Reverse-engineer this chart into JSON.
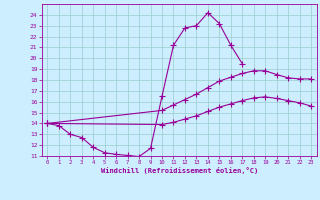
{
  "bg_color": "#cceeff",
  "line_color": "#990099",
  "grid_color": "#99cccc",
  "xlabel": "Windchill (Refroidissement éolien,°C)",
  "ylim": [
    11,
    25
  ],
  "xlim": [
    -0.5,
    23.5
  ],
  "yticks": [
    11,
    12,
    13,
    14,
    15,
    16,
    17,
    18,
    19,
    20,
    21,
    22,
    23,
    24
  ],
  "xticks": [
    0,
    1,
    2,
    3,
    4,
    5,
    6,
    7,
    8,
    9,
    10,
    11,
    12,
    13,
    14,
    15,
    16,
    17,
    18,
    19,
    20,
    21,
    22,
    23
  ],
  "line1_x": [
    0,
    1,
    2,
    3,
    4,
    5,
    6,
    7,
    8,
    9,
    10,
    11,
    12,
    13,
    14,
    15,
    16,
    17
  ],
  "line1_y": [
    14.0,
    13.8,
    13.0,
    12.7,
    11.8,
    11.3,
    11.15,
    11.05,
    10.95,
    11.7,
    16.5,
    21.2,
    22.8,
    23.0,
    24.2,
    23.2,
    21.2,
    19.5
  ],
  "line2_x": [
    0,
    10,
    11,
    12,
    13,
    14,
    15,
    16,
    17,
    18,
    19,
    20,
    21,
    22,
    23
  ],
  "line2_y": [
    14.0,
    15.2,
    15.7,
    16.2,
    16.7,
    17.3,
    17.9,
    18.25,
    18.6,
    18.85,
    18.85,
    18.5,
    18.2,
    18.1,
    18.1
  ],
  "line3_x": [
    0,
    10,
    11,
    12,
    13,
    14,
    15,
    16,
    17,
    18,
    19,
    20,
    21,
    22,
    23
  ],
  "line3_y": [
    14.0,
    13.9,
    14.1,
    14.4,
    14.7,
    15.1,
    15.5,
    15.8,
    16.1,
    16.35,
    16.45,
    16.3,
    16.1,
    15.9,
    15.6
  ]
}
